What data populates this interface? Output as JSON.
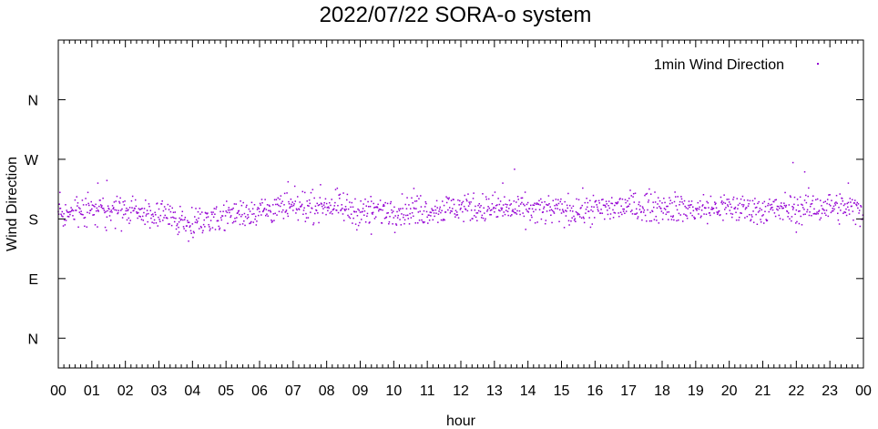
{
  "chart_data": {
    "type": "scatter",
    "title": "2022/07/22 SORA-o system",
    "xlabel": "hour",
    "ylabel": "Wind Direction",
    "xlim": [
      0,
      24
    ],
    "ylim": [
      -45,
      450
    ],
    "x_ticks": [
      {
        "value": 0,
        "label": "00"
      },
      {
        "value": 1,
        "label": "01"
      },
      {
        "value": 2,
        "label": "02"
      },
      {
        "value": 3,
        "label": "03"
      },
      {
        "value": 4,
        "label": "04"
      },
      {
        "value": 5,
        "label": "05"
      },
      {
        "value": 6,
        "label": "06"
      },
      {
        "value": 7,
        "label": "07"
      },
      {
        "value": 8,
        "label": "08"
      },
      {
        "value": 9,
        "label": "09"
      },
      {
        "value": 10,
        "label": "10"
      },
      {
        "value": 11,
        "label": "11"
      },
      {
        "value": 12,
        "label": "12"
      },
      {
        "value": 13,
        "label": "13"
      },
      {
        "value": 14,
        "label": "14"
      },
      {
        "value": 15,
        "label": "15"
      },
      {
        "value": 16,
        "label": "16"
      },
      {
        "value": 17,
        "label": "17"
      },
      {
        "value": 18,
        "label": "18"
      },
      {
        "value": 19,
        "label": "19"
      },
      {
        "value": 20,
        "label": "20"
      },
      {
        "value": 21,
        "label": "21"
      },
      {
        "value": 22,
        "label": "22"
      },
      {
        "value": 23,
        "label": "23"
      },
      {
        "value": 24,
        "label": "00"
      }
    ],
    "y_ticks": [
      {
        "value": 0,
        "label": "N"
      },
      {
        "value": 90,
        "label": "E"
      },
      {
        "value": 180,
        "label": "S"
      },
      {
        "value": 270,
        "label": "W"
      },
      {
        "value": 360,
        "label": "N"
      }
    ],
    "grid": false,
    "legend_position": "top-right",
    "series": [
      {
        "name": "1min Wind Direction",
        "color": "#9400d3",
        "marker": "dot",
        "points_per_hour": 60,
        "hourly_mean_direction": [
          {
            "x": 0,
            "y": 184
          },
          {
            "x": 1,
            "y": 193
          },
          {
            "x": 2,
            "y": 192
          },
          {
            "x": 3,
            "y": 186
          },
          {
            "x": 4,
            "y": 175
          },
          {
            "x": 5,
            "y": 186
          },
          {
            "x": 6,
            "y": 193
          },
          {
            "x": 7,
            "y": 197
          },
          {
            "x": 8,
            "y": 202
          },
          {
            "x": 9,
            "y": 190
          },
          {
            "x": 10,
            "y": 193
          },
          {
            "x": 11,
            "y": 193
          },
          {
            "x": 12,
            "y": 198
          },
          {
            "x": 13,
            "y": 196
          },
          {
            "x": 14,
            "y": 193
          },
          {
            "x": 15,
            "y": 193
          },
          {
            "x": 16,
            "y": 194
          },
          {
            "x": 17,
            "y": 199
          },
          {
            "x": 18,
            "y": 199
          },
          {
            "x": 19,
            "y": 194
          },
          {
            "x": 20,
            "y": 197
          },
          {
            "x": 21,
            "y": 194
          },
          {
            "x": 22,
            "y": 195
          },
          {
            "x": 23,
            "y": 199
          },
          {
            "x": 24,
            "y": 193
          }
        ],
        "typical_spread_deg": 11,
        "outliers": [
          {
            "x": 0.05,
            "y": 220
          },
          {
            "x": 1.18,
            "y": 234
          },
          {
            "x": 1.45,
            "y": 238
          },
          {
            "x": 3.6,
            "y": 160
          },
          {
            "x": 6.85,
            "y": 236
          },
          {
            "x": 9.33,
            "y": 157
          },
          {
            "x": 10.6,
            "y": 226
          },
          {
            "x": 13.6,
            "y": 255
          },
          {
            "x": 13.25,
            "y": 234
          },
          {
            "x": 21.9,
            "y": 265
          },
          {
            "x": 22.25,
            "y": 251
          },
          {
            "x": 22.0,
            "y": 160
          },
          {
            "x": 23.55,
            "y": 234
          }
        ]
      }
    ]
  }
}
